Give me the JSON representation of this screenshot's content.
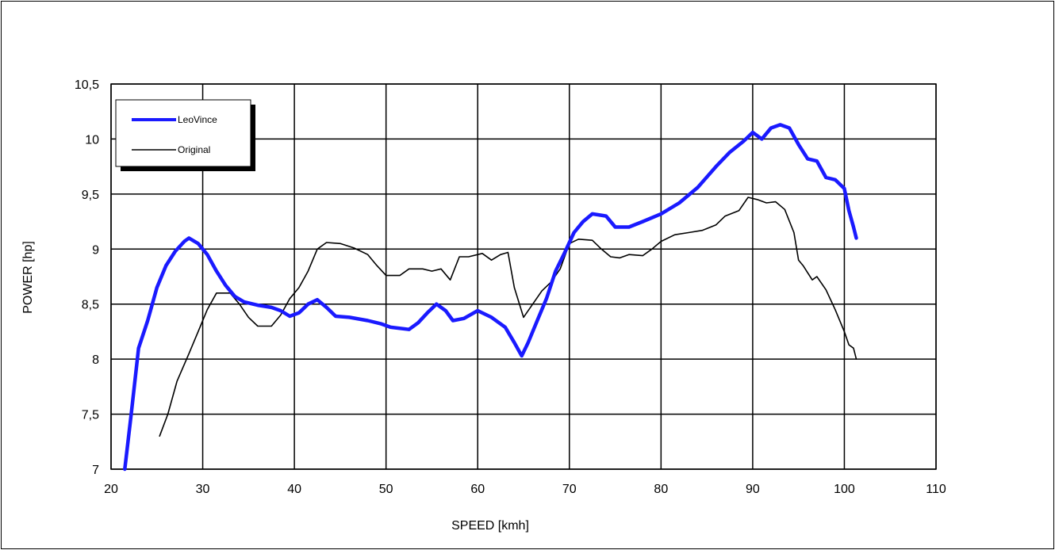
{
  "chart_data": {
    "type": "line",
    "title": "",
    "xlabel": "SPEED  [kmh]",
    "ylabel": "POWER [hp]",
    "xlim": [
      20,
      110
    ],
    "ylim": [
      7,
      10.5
    ],
    "x_ticks": [
      "20",
      "30",
      "40",
      "50",
      "60",
      "70",
      "80",
      "90",
      "100",
      "110"
    ],
    "y_ticks": [
      "7",
      "7,5",
      "8",
      "8,5",
      "9",
      "9,5",
      "10",
      "10,5"
    ],
    "grid": true,
    "legend_position": "top-left",
    "series": [
      {
        "name": "LeoVince",
        "color": "#1a1aff",
        "points": [
          [
            21.5,
            7.0
          ],
          [
            22.2,
            7.5
          ],
          [
            23.0,
            8.1
          ],
          [
            24.0,
            8.35
          ],
          [
            25.0,
            8.65
          ],
          [
            26.0,
            8.85
          ],
          [
            27.0,
            8.98
          ],
          [
            28.0,
            9.07
          ],
          [
            28.5,
            9.1
          ],
          [
            29.5,
            9.05
          ],
          [
            30.5,
            8.95
          ],
          [
            31.5,
            8.8
          ],
          [
            32.5,
            8.67
          ],
          [
            33.5,
            8.57
          ],
          [
            34.5,
            8.52
          ],
          [
            36.0,
            8.49
          ],
          [
            37.5,
            8.47
          ],
          [
            38.5,
            8.44
          ],
          [
            39.5,
            8.39
          ],
          [
            40.5,
            8.42
          ],
          [
            41.5,
            8.5
          ],
          [
            42.5,
            8.54
          ],
          [
            43.5,
            8.47
          ],
          [
            44.5,
            8.39
          ],
          [
            46.0,
            8.38
          ],
          [
            48.0,
            8.35
          ],
          [
            49.5,
            8.32
          ],
          [
            50.5,
            8.29
          ],
          [
            52.5,
            8.27
          ],
          [
            53.5,
            8.33
          ],
          [
            54.5,
            8.42
          ],
          [
            55.5,
            8.5
          ],
          [
            56.5,
            8.44
          ],
          [
            57.3,
            8.35
          ],
          [
            58.5,
            8.37
          ],
          [
            60.0,
            8.44
          ],
          [
            61.5,
            8.38
          ],
          [
            63.0,
            8.29
          ],
          [
            64.0,
            8.15
          ],
          [
            64.8,
            8.03
          ],
          [
            65.5,
            8.15
          ],
          [
            66.5,
            8.35
          ],
          [
            67.5,
            8.55
          ],
          [
            68.5,
            8.8
          ],
          [
            69.5,
            8.97
          ],
          [
            70.5,
            9.15
          ],
          [
            71.5,
            9.25
          ],
          [
            72.5,
            9.32
          ],
          [
            74.0,
            9.3
          ],
          [
            75.0,
            9.2
          ],
          [
            76.5,
            9.2
          ],
          [
            78.0,
            9.25
          ],
          [
            80.0,
            9.32
          ],
          [
            82.0,
            9.42
          ],
          [
            84.0,
            9.56
          ],
          [
            86.0,
            9.75
          ],
          [
            87.5,
            9.88
          ],
          [
            89.0,
            9.98
          ],
          [
            90.0,
            10.06
          ],
          [
            91.0,
            10.0
          ],
          [
            92.0,
            10.1
          ],
          [
            93.0,
            10.13
          ],
          [
            94.0,
            10.1
          ],
          [
            95.0,
            9.95
          ],
          [
            96.0,
            9.82
          ],
          [
            97.0,
            9.8
          ],
          [
            98.0,
            9.65
          ],
          [
            99.0,
            9.63
          ],
          [
            100.0,
            9.55
          ],
          [
            100.5,
            9.35
          ],
          [
            101.0,
            9.2
          ],
          [
            101.3,
            9.1
          ]
        ]
      },
      {
        "name": "Original",
        "color": "#000000",
        "points": [
          [
            25.3,
            7.3
          ],
          [
            26.2,
            7.5
          ],
          [
            27.2,
            7.8
          ],
          [
            28.5,
            8.05
          ],
          [
            29.5,
            8.25
          ],
          [
            30.5,
            8.45
          ],
          [
            31.5,
            8.6
          ],
          [
            33.0,
            8.6
          ],
          [
            34.0,
            8.5
          ],
          [
            35.0,
            8.38
          ],
          [
            36.0,
            8.3
          ],
          [
            37.5,
            8.3
          ],
          [
            38.5,
            8.4
          ],
          [
            39.5,
            8.55
          ],
          [
            40.5,
            8.65
          ],
          [
            41.5,
            8.8
          ],
          [
            42.5,
            9.0
          ],
          [
            43.5,
            9.06
          ],
          [
            45.0,
            9.05
          ],
          [
            46.5,
            9.01
          ],
          [
            48.0,
            8.95
          ],
          [
            49.0,
            8.85
          ],
          [
            50.0,
            8.76
          ],
          [
            51.5,
            8.76
          ],
          [
            52.5,
            8.82
          ],
          [
            54.0,
            8.82
          ],
          [
            55.0,
            8.8
          ],
          [
            56.0,
            8.82
          ],
          [
            57.0,
            8.72
          ],
          [
            58.0,
            8.93
          ],
          [
            59.0,
            8.93
          ],
          [
            60.5,
            8.96
          ],
          [
            61.5,
            8.9
          ],
          [
            62.5,
            8.95
          ],
          [
            63.3,
            8.97
          ],
          [
            64.0,
            8.65
          ],
          [
            65.0,
            8.38
          ],
          [
            66.0,
            8.5
          ],
          [
            67.0,
            8.62
          ],
          [
            68.0,
            8.7
          ],
          [
            69.0,
            8.82
          ],
          [
            70.0,
            9.05
          ],
          [
            71.0,
            9.09
          ],
          [
            72.5,
            9.08
          ],
          [
            73.5,
            9.0
          ],
          [
            74.5,
            8.93
          ],
          [
            75.5,
            8.92
          ],
          [
            76.5,
            8.95
          ],
          [
            78.0,
            8.94
          ],
          [
            79.0,
            9.0
          ],
          [
            80.0,
            9.07
          ],
          [
            81.5,
            9.13
          ],
          [
            83.0,
            9.15
          ],
          [
            84.5,
            9.17
          ],
          [
            86.0,
            9.22
          ],
          [
            87.0,
            9.3
          ],
          [
            88.5,
            9.35
          ],
          [
            89.5,
            9.47
          ],
          [
            90.5,
            9.45
          ],
          [
            91.5,
            9.42
          ],
          [
            92.5,
            9.43
          ],
          [
            93.5,
            9.36
          ],
          [
            94.5,
            9.15
          ],
          [
            95.0,
            8.9
          ],
          [
            95.5,
            8.85
          ],
          [
            96.5,
            8.72
          ],
          [
            97.0,
            8.75
          ],
          [
            98.0,
            8.63
          ],
          [
            99.0,
            8.45
          ],
          [
            100.0,
            8.25
          ],
          [
            100.5,
            8.13
          ],
          [
            101.0,
            8.1
          ],
          [
            101.3,
            8.0
          ]
        ]
      }
    ]
  }
}
